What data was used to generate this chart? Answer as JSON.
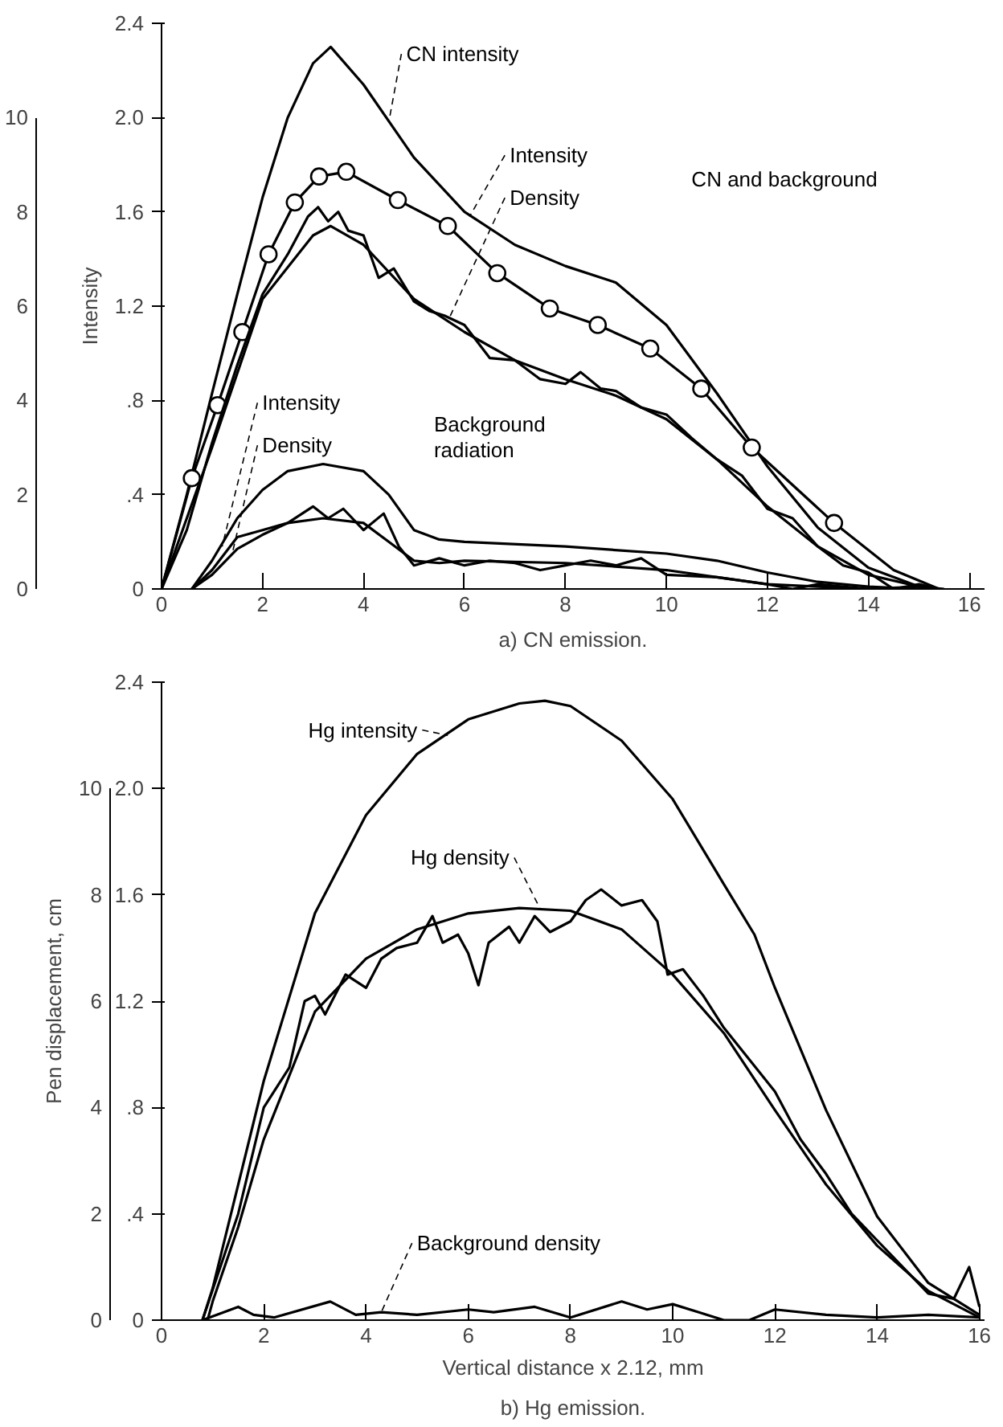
{
  "chart_data": [
    {
      "type": "line",
      "title": "a) CN emission.",
      "ylabel": "Intensity",
      "xlim": [
        0,
        16.3
      ],
      "xticks": [
        0,
        2,
        4,
        6,
        8,
        10,
        12,
        14,
        16
      ],
      "ylim": [
        0,
        2.4
      ],
      "yticks": [
        0,
        {
          "value": 0.4,
          "label": ".4"
        },
        {
          "value": 0.8,
          "label": ".8"
        },
        {
          "value": 1.2,
          "label": "1.2"
        },
        {
          "value": 1.6,
          "label": "1.6"
        },
        {
          "value": 2.0,
          "label": "2.0"
        },
        {
          "value": 2.4,
          "label": "2.4"
        }
      ],
      "y2lim": [
        0,
        12
      ],
      "y2ticks": [
        0,
        2,
        4,
        6,
        8,
        10
      ],
      "grid": false,
      "line_style": "solid",
      "series": [
        {
          "color": "#000000",
          "x": [
            0,
            0.5,
            1,
            1.5,
            2,
            2.5,
            3,
            3.35,
            4,
            5,
            6,
            7,
            8,
            9,
            10,
            11,
            12,
            13,
            14,
            15,
            15.5
          ],
          "values": [
            0,
            0.4,
            0.83,
            1.25,
            1.66,
            2.0,
            2.23,
            2.3,
            2.14,
            1.83,
            1.6,
            1.46,
            1.37,
            1.3,
            1.12,
            0.83,
            0.52,
            0.26,
            0.09,
            0.01,
            0
          ]
        },
        {
          "color": "#000000",
          "x": [
            0,
            0.6,
            7,
            13.32,
            14.5,
            15.4
          ],
          "values": [
            0,
            0.47,
            null,
            0.28,
            0.08,
            0
          ]
        },
        {
          "type": "line",
          "marker": "circle",
          "color": "#000000",
          "x": [
            0.6,
            1.11,
            1.6,
            2.12,
            2.64,
            3.12,
            3.66,
            4.68,
            5.67,
            6.65,
            7.69,
            8.64,
            9.68,
            10.69,
            11.69,
            13.32
          ],
          "values": [
            0.47,
            0.78,
            1.09,
            1.42,
            1.64,
            1.75,
            1.77,
            1.65,
            1.54,
            1.34,
            1.19,
            1.12,
            1.02,
            0.85,
            0.6,
            0.28
          ]
        },
        {
          "color": "#000000",
          "x": [
            0,
            1,
            2,
            3,
            3.35,
            4,
            5,
            6,
            7,
            8,
            9,
            10,
            11,
            12,
            13,
            14,
            15,
            15.4
          ],
          "values": [
            0,
            0.6,
            1.23,
            1.5,
            1.54,
            1.46,
            1.23,
            1.09,
            0.97,
            0.89,
            0.82,
            0.72,
            0.55,
            0.35,
            0.18,
            0.06,
            0.01,
            0
          ]
        },
        {
          "color": "#000000",
          "x": [
            0,
            0.5,
            1,
            1.5,
            2,
            2.5,
            2.9,
            3.1,
            3.3,
            3.5,
            3.7,
            4.0,
            4.3,
            4.6,
            5.0,
            5.3,
            5.6,
            6.0,
            6.5,
            7.0,
            7.5,
            8.0,
            8.3,
            8.7,
            9.0,
            9.5,
            10.0,
            10.5,
            11.0,
            11.5,
            12.0,
            12.5,
            13.0,
            13.5,
            14.0,
            14.5,
            15.0,
            15.4
          ],
          "values": [
            0,
            0.25,
            0.62,
            0.95,
            1.25,
            1.42,
            1.58,
            1.62,
            1.56,
            1.6,
            1.52,
            1.5,
            1.32,
            1.36,
            1.22,
            1.18,
            1.16,
            1.12,
            0.98,
            0.97,
            0.89,
            0.87,
            0.92,
            0.85,
            0.84,
            0.77,
            0.74,
            0.64,
            0.55,
            0.48,
            0.34,
            0.3,
            0.18,
            0.1,
            0.07,
            0,
            0.02,
            0
          ]
        },
        {
          "color": "#000000",
          "x": [
            0.6,
            1,
            1.5,
            2,
            2.5,
            3.2,
            4,
            4.5,
            5,
            5.5,
            6,
            8,
            10,
            11,
            12,
            13,
            14,
            15
          ],
          "values": [
            0,
            0.12,
            0.3,
            0.42,
            0.5,
            0.53,
            0.5,
            0.4,
            0.25,
            0.21,
            0.2,
            0.18,
            0.15,
            0.12,
            0.07,
            0.03,
            0.01,
            0
          ]
        },
        {
          "color": "#000000",
          "x": [
            0.6,
            1,
            1.5,
            2,
            2.5,
            3.2,
            4,
            4.5,
            5,
            5.5,
            6,
            8,
            10,
            11,
            12,
            13,
            14
          ],
          "values": [
            0,
            0.06,
            0.17,
            0.23,
            0.28,
            0.3,
            0.28,
            0.2,
            0.12,
            0.11,
            0.12,
            0.11,
            0.08,
            0.05,
            0.02,
            0.01,
            0
          ]
        },
        {
          "color": "#000000",
          "x": [
            0.6,
            1,
            1.5,
            2,
            2.5,
            3,
            3.3,
            3.6,
            4,
            4.4,
            4.7,
            5,
            5.5,
            6,
            6.5,
            7,
            7.5,
            8,
            8.5,
            9,
            9.5,
            10,
            11,
            12,
            12.5,
            13,
            14,
            15
          ],
          "values": [
            0,
            0.08,
            0.22,
            0.25,
            0.28,
            0.35,
            0.3,
            0.34,
            0.25,
            0.32,
            0.18,
            0.1,
            0.13,
            0.1,
            0.12,
            0.11,
            0.08,
            0.1,
            0.12,
            0.1,
            0.13,
            0.06,
            0.05,
            0.02,
            0,
            0.02,
            0,
            0.01
          ]
        }
      ],
      "annotations": [
        {
          "text": "CN intensity",
          "x": 4.5,
          "y": 1.98
        },
        {
          "text": "Intensity",
          "x": 6.1,
          "y": 1.58
        },
        {
          "text": "Density",
          "x": 5.7,
          "y": 1.15
        },
        "CN and background",
        {
          "text": "Intensity",
          "x": 1.2,
          "y": 0.18
        },
        {
          "text": "Density",
          "x": 1.4,
          "y": 0.15
        },
        "Background radiation"
      ]
    },
    {
      "type": "line",
      "title": "b) Hg emission.",
      "xlabel": "Vertical distance x 2.12, mm",
      "y2label": "Pen displacement, cm",
      "xlim": [
        0,
        16.1
      ],
      "xticks": [
        0,
        2,
        4,
        6,
        8,
        10,
        12,
        14,
        16
      ],
      "ylim": [
        0,
        2.4
      ],
      "yticks": [
        0,
        {
          "value": 0.4,
          "label": ".4"
        },
        {
          "value": 0.8,
          "label": ".8"
        },
        {
          "value": 1.2,
          "label": "1.2"
        },
        {
          "value": 1.6,
          "label": "1.6"
        },
        {
          "value": 2.0,
          "label": "2.0"
        },
        {
          "value": 2.4,
          "label": "2.4"
        }
      ],
      "y2lim": [
        0,
        12
      ],
      "y2ticks": [
        0,
        2,
        4,
        6,
        8,
        10
      ],
      "grid": false,
      "line_style": "solid",
      "series": [
        {
          "color": "#000000",
          "x": [
            0.8,
            1,
            1.5,
            2,
            3,
            4,
            5,
            6,
            7,
            7.5,
            8,
            9,
            10,
            11,
            11.6,
            12,
            13,
            14,
            15,
            16
          ],
          "values": [
            0,
            0.12,
            0.51,
            0.9,
            1.53,
            1.9,
            2.13,
            2.26,
            2.32,
            2.33,
            2.31,
            2.18,
            1.96,
            1.64,
            1.45,
            1.25,
            0.79,
            0.39,
            0.14,
            0.02
          ]
        },
        {
          "color": "#000000",
          "x": [
            0.9,
            1,
            1.5,
            2,
            3,
            4,
            5,
            6,
            7,
            8,
            9,
            10,
            11,
            12,
            13,
            14,
            15,
            16
          ],
          "values": [
            0,
            0.07,
            0.35,
            0.68,
            1.16,
            1.36,
            1.47,
            1.53,
            1.55,
            1.54,
            1.47,
            1.3,
            1.08,
            0.79,
            0.51,
            0.28,
            0.11,
            0.01
          ]
        },
        {
          "color": "#000000",
          "x": [
            0.8,
            1.5,
            2,
            2.5,
            2.8,
            3,
            3.2,
            3.6,
            4,
            4.3,
            4.6,
            5,
            5.3,
            5.5,
            5.8,
            6,
            6.2,
            6.4,
            6.8,
            7,
            7.3,
            7.6,
            8,
            8.3,
            8.6,
            9,
            9.4,
            9.7,
            9.9,
            10.2,
            10.6,
            11,
            11.5,
            12,
            12.5,
            13,
            13.5,
            14,
            14.5,
            15,
            15.5,
            15.8,
            16
          ],
          "values": [
            0,
            0.4,
            0.8,
            0.95,
            1.2,
            1.22,
            1.15,
            1.3,
            1.25,
            1.36,
            1.4,
            1.42,
            1.52,
            1.42,
            1.45,
            1.38,
            1.26,
            1.42,
            1.48,
            1.42,
            1.52,
            1.46,
            1.5,
            1.58,
            1.62,
            1.56,
            1.58,
            1.5,
            1.3,
            1.32,
            1.22,
            1.1,
            0.98,
            0.86,
            0.68,
            0.55,
            0.4,
            0.3,
            0.2,
            0.1,
            0.08,
            0.2,
            0.05
          ]
        },
        {
          "color": "#000000",
          "x": [
            0.8,
            1.5,
            1.8,
            2.2,
            3.3,
            3.8,
            4.3,
            5,
            6,
            6.5,
            7.3,
            8,
            9,
            9.5,
            10,
            10.5,
            11,
            11.5,
            12,
            13,
            14,
            15,
            16
          ],
          "values": [
            0,
            0.05,
            0.02,
            0.01,
            0.07,
            0.02,
            0.03,
            0.02,
            0.04,
            0.03,
            0.05,
            0.01,
            0.07,
            0.04,
            0.06,
            0.03,
            0,
            0,
            0.04,
            0.02,
            0.01,
            0.02,
            0.01
          ]
        }
      ],
      "annotations": [
        {
          "text": "Hg intensity",
          "x": 5.6,
          "y": 2.2
        },
        {
          "text": "Hg density",
          "x": 7.4,
          "y": 1.55
        },
        {
          "text": "Background density",
          "x": 4.3,
          "y": 0.03
        }
      ]
    }
  ]
}
